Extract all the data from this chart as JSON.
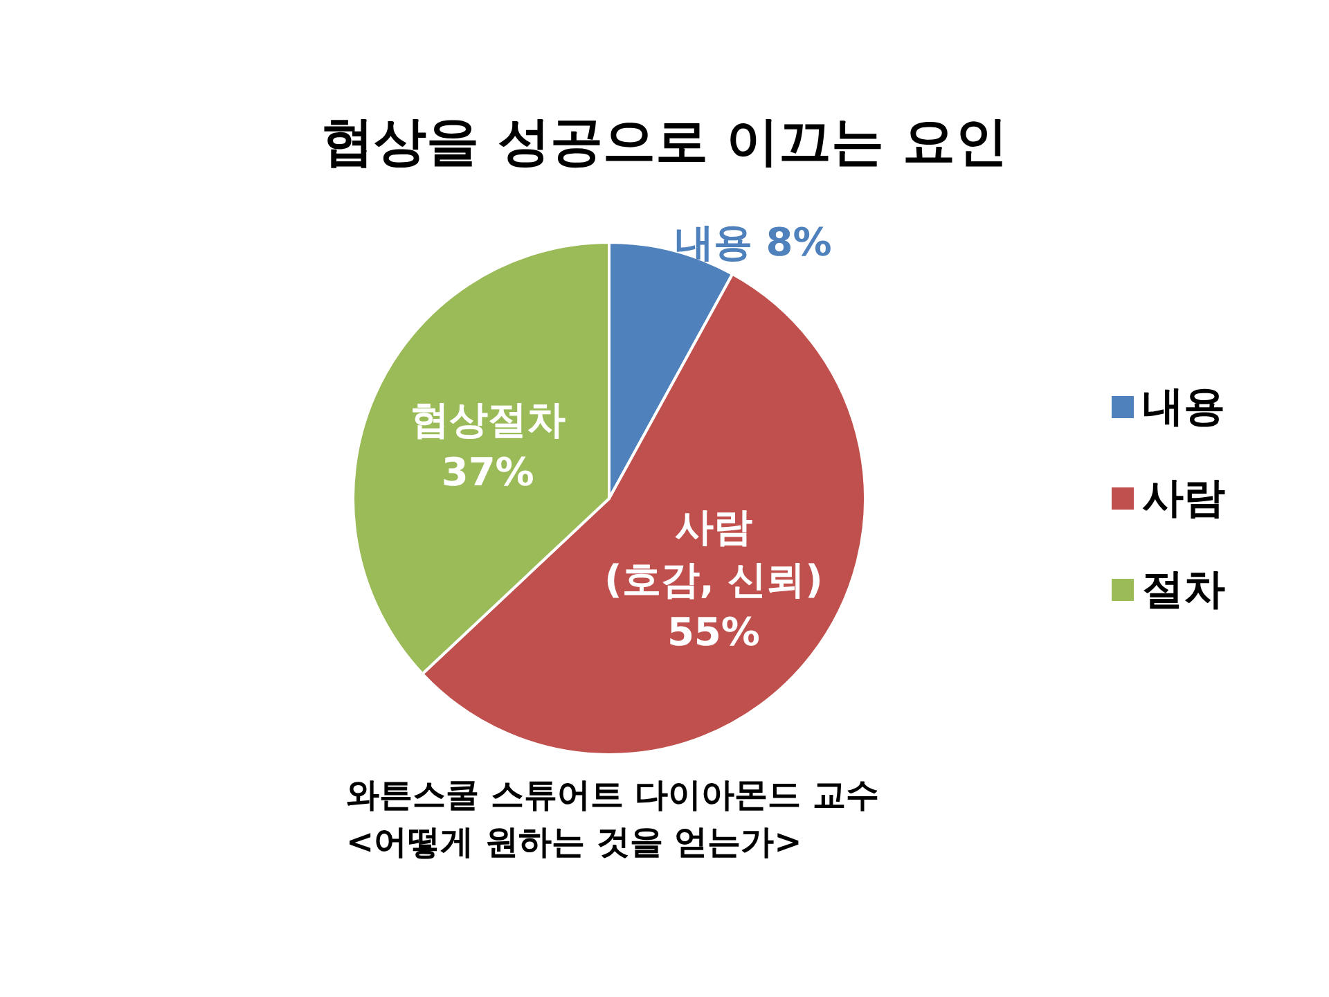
{
  "chart_data": {
    "type": "pie",
    "title": "협상을 성공으로 이끄는 요인",
    "categories": [
      "내용",
      "사람",
      "절차"
    ],
    "values": [
      8,
      55,
      37
    ],
    "colors": [
      "#4f81bd",
      "#c0504d",
      "#9bbb59"
    ],
    "value_labels": [
      "내용 8%",
      "사람\n(호감, 신뢰)\n55%",
      "협상절차\n37%"
    ],
    "legend": "right",
    "annotations": [
      "와튼스쿨 스튜어트 다이아몬드 교수",
      "<어떻게 원하는 것을 얻는가>"
    ]
  }
}
